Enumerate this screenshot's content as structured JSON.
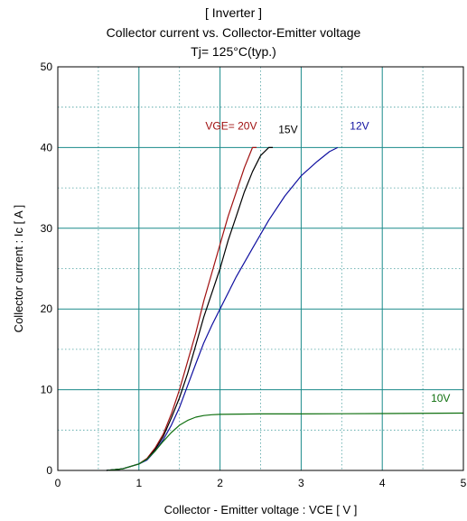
{
  "titles": {
    "line1": "[ Inverter ]",
    "line2": "Collector current  vs.  Collector-Emitter voltage",
    "line3": "Tj= 125°C(typ.)"
  },
  "chart_data": {
    "type": "line",
    "title": "[ Inverter ] Collector current vs. Collector-Emitter voltage Tj= 125°C(typ.)",
    "xlabel": "Collector - Emitter voltage  :  VCE  [ V ]",
    "ylabel": "Collector current  :  Ic  [ A ]",
    "xlim": [
      0,
      5
    ],
    "ylim": [
      0,
      50
    ],
    "xticks": [
      0,
      1,
      2,
      3,
      4,
      5
    ],
    "yticks": [
      0,
      10,
      20,
      30,
      40,
      50
    ],
    "x_minor_step": 0.5,
    "y_minor_step": 5,
    "grid": true,
    "series": [
      {
        "name": "VGE= 20V",
        "color": "#a01010",
        "points": [
          [
            0.6,
            0
          ],
          [
            0.8,
            0.2
          ],
          [
            1.0,
            0.8
          ],
          [
            1.1,
            1.5
          ],
          [
            1.2,
            2.8
          ],
          [
            1.3,
            4.5
          ],
          [
            1.4,
            7.0
          ],
          [
            1.5,
            10.0
          ],
          [
            1.6,
            13.5
          ],
          [
            1.7,
            17.0
          ],
          [
            1.8,
            21.0
          ],
          [
            1.9,
            24.5
          ],
          [
            2.0,
            28.0
          ],
          [
            2.1,
            31.5
          ],
          [
            2.2,
            34.5
          ],
          [
            2.3,
            37.5
          ],
          [
            2.4,
            40.0
          ],
          [
            2.45,
            40.0
          ]
        ]
      },
      {
        "name": "15V",
        "color": "#000000",
        "points": [
          [
            0.6,
            0
          ],
          [
            0.8,
            0.2
          ],
          [
            1.0,
            0.8
          ],
          [
            1.1,
            1.4
          ],
          [
            1.2,
            2.6
          ],
          [
            1.3,
            4.2
          ],
          [
            1.4,
            6.5
          ],
          [
            1.5,
            9.0
          ],
          [
            1.6,
            12.0
          ],
          [
            1.7,
            15.5
          ],
          [
            1.8,
            19.0
          ],
          [
            1.9,
            22.0
          ],
          [
            2.0,
            25.0
          ],
          [
            2.1,
            28.5
          ],
          [
            2.2,
            31.5
          ],
          [
            2.3,
            34.5
          ],
          [
            2.4,
            37.0
          ],
          [
            2.5,
            39.0
          ],
          [
            2.6,
            40.0
          ],
          [
            2.65,
            40.0
          ]
        ]
      },
      {
        "name": "12V",
        "color": "#1010a0",
        "points": [
          [
            0.6,
            0
          ],
          [
            0.8,
            0.2
          ],
          [
            1.0,
            0.8
          ],
          [
            1.1,
            1.3
          ],
          [
            1.2,
            2.4
          ],
          [
            1.3,
            3.8
          ],
          [
            1.4,
            5.6
          ],
          [
            1.5,
            7.8
          ],
          [
            1.6,
            10.5
          ],
          [
            1.7,
            13.2
          ],
          [
            1.8,
            15.8
          ],
          [
            1.9,
            18.0
          ],
          [
            2.0,
            20.0
          ],
          [
            2.2,
            24.0
          ],
          [
            2.4,
            27.5
          ],
          [
            2.6,
            31.0
          ],
          [
            2.8,
            34.0
          ],
          [
            3.0,
            36.5
          ],
          [
            3.2,
            38.3
          ],
          [
            3.35,
            39.5
          ],
          [
            3.45,
            40.0
          ]
        ]
      },
      {
        "name": "10V",
        "color": "#107010",
        "points": [
          [
            0.6,
            0
          ],
          [
            0.8,
            0.2
          ],
          [
            1.0,
            0.8
          ],
          [
            1.1,
            1.4
          ],
          [
            1.2,
            2.4
          ],
          [
            1.3,
            3.6
          ],
          [
            1.4,
            4.7
          ],
          [
            1.5,
            5.6
          ],
          [
            1.6,
            6.2
          ],
          [
            1.7,
            6.6
          ],
          [
            1.8,
            6.8
          ],
          [
            1.9,
            6.9
          ],
          [
            2.0,
            6.95
          ],
          [
            2.5,
            7.0
          ],
          [
            3.0,
            7.0
          ],
          [
            4.0,
            7.05
          ],
          [
            5.0,
            7.1
          ]
        ]
      }
    ],
    "labels": [
      {
        "text": "VGE= 20V",
        "x": 1.82,
        "y": 42.2,
        "color": "#a01010"
      },
      {
        "text": "15V",
        "x": 2.72,
        "y": 41.8,
        "color": "#000000"
      },
      {
        "text": "12V",
        "x": 3.6,
        "y": 42.2,
        "color": "#1010a0"
      },
      {
        "text": "10V",
        "x": 4.6,
        "y": 8.5,
        "color": "#107010"
      }
    ]
  }
}
